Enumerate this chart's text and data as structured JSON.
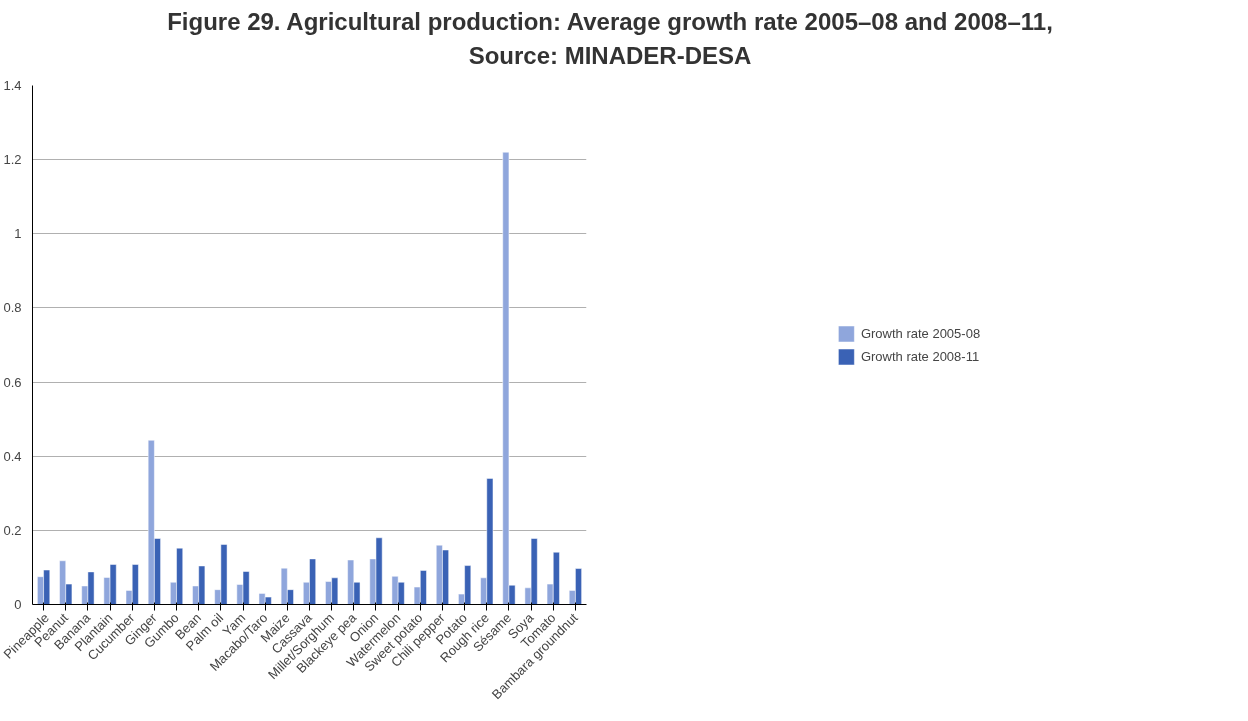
{
  "chart_data": {
    "type": "bar",
    "title": "Figure 29. Agricultural production: Average growth rate 2005–08 and 2008–11, Source: MINADER-DESA",
    "categories": [
      "Pineapple",
      "Peanut",
      "Banana",
      "Plantain",
      "Cucumber",
      "Ginger",
      "Gumbo",
      "Bean",
      "Palm oil",
      "Yam",
      "Macabo/Taro",
      "Maize",
      "Cassava",
      "Millet/Sorghum",
      "Blackeye pea",
      "Onion",
      "Watermelon",
      "Sweet potato",
      "Chili pepper",
      "Potato",
      "Rough rice",
      "Sésame",
      "Soya",
      "Tomato",
      "Bambara groundnut"
    ],
    "series": [
      {
        "name": "Growth rate 2005-08",
        "color": "#8fa6dc",
        "values": [
          0.075,
          0.118,
          0.05,
          0.073,
          0.038,
          0.443,
          0.06,
          0.05,
          0.04,
          0.054,
          0.03,
          0.098,
          0.06,
          0.062,
          0.12,
          0.123,
          0.076,
          0.047,
          0.16,
          0.028,
          0.072,
          1.22,
          0.045,
          0.055,
          0.038
        ]
      },
      {
        "name": "Growth rate 2008-11",
        "color": "#3a62b5",
        "values": [
          0.093,
          0.055,
          0.088,
          0.108,
          0.108,
          0.178,
          0.152,
          0.104,
          0.162,
          0.089,
          0.02,
          0.04,
          0.123,
          0.072,
          0.06,
          0.18,
          0.06,
          0.092,
          0.147,
          0.105,
          0.34,
          0.052,
          0.178,
          0.141,
          0.097
        ]
      }
    ],
    "ylim": [
      0,
      1.4
    ],
    "yticks": [
      0,
      0.2,
      0.4,
      0.6,
      0.8,
      1,
      1.2,
      1.4
    ],
    "grid": "y",
    "legend": "right"
  }
}
